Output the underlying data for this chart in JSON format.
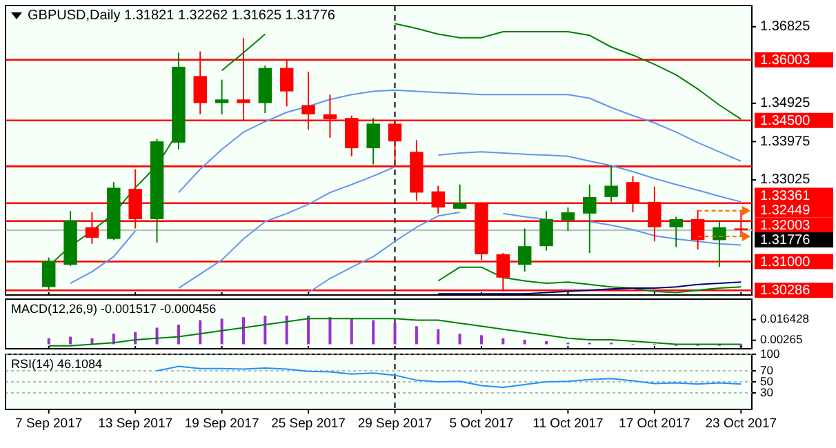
{
  "chart_data": [
    {
      "type": "candlestick",
      "title": "GBPUSD,Daily 1.31821 1.32262 1.31625 1.31776",
      "categories": [
        "7 Sep 2017",
        null,
        null,
        null,
        "13 Sep 2017",
        null,
        null,
        null,
        "19 Sep 2017",
        null,
        null,
        null,
        "25 Sep 2017",
        null,
        null,
        null,
        "29 Sep 2017",
        null,
        null,
        null,
        "5 Oct 2017",
        null,
        null,
        null,
        "11 Oct 2017",
        null,
        null,
        null,
        "17 Oct 2017",
        null,
        null,
        null,
        "23 Oct 2017"
      ],
      "ohlc": [
        [
          1.3037,
          1.311,
          1.303,
          1.3101
        ],
        [
          1.3092,
          1.3225,
          1.3089,
          1.3202
        ],
        [
          1.3185,
          1.3222,
          1.3144,
          1.3159
        ],
        [
          1.3156,
          1.3297,
          1.3153,
          1.3283
        ],
        [
          1.328,
          1.3329,
          1.3182,
          1.3205
        ],
        [
          1.3205,
          1.3404,
          1.3147,
          1.3398
        ],
        [
          1.3395,
          1.3618,
          1.3378,
          1.3583
        ],
        [
          1.356,
          1.3621,
          1.3465,
          1.3493
        ],
        [
          1.3493,
          1.3551,
          1.3465,
          1.3502
        ],
        [
          1.3502,
          1.3655,
          1.345,
          1.3493
        ],
        [
          1.3493,
          1.3586,
          1.3468,
          1.358
        ],
        [
          1.358,
          1.36,
          1.3485,
          1.3522
        ],
        [
          1.3488,
          1.3571,
          1.3427,
          1.3465
        ],
        [
          1.3465,
          1.3514,
          1.3407,
          1.3453
        ],
        [
          1.3456,
          1.3462,
          1.3361,
          1.3381
        ],
        [
          1.3381,
          1.3456,
          1.3341,
          1.3442
        ],
        [
          1.3442,
          1.3442,
          1.3346,
          1.3398
        ],
        [
          1.3372,
          1.3401,
          1.3251,
          1.3271
        ],
        [
          1.3274,
          1.3288,
          1.3219,
          1.3234
        ],
        [
          1.3231,
          1.3291,
          1.3231,
          1.3245
        ],
        [
          1.3245,
          1.3248,
          1.3104,
          1.3118
        ],
        [
          1.3118,
          1.3121,
          1.3026,
          1.306
        ],
        [
          1.3092,
          1.3182,
          1.3075,
          1.3138
        ],
        [
          1.3138,
          1.3225,
          1.3127,
          1.3205
        ],
        [
          1.3202,
          1.3234,
          1.3176,
          1.3222
        ],
        [
          1.3219,
          1.3291,
          1.3121,
          1.326
        ],
        [
          1.326,
          1.3338,
          1.3248,
          1.3288
        ],
        [
          1.3297,
          1.3312,
          1.3222,
          1.3245
        ],
        [
          1.3248,
          1.3286,
          1.315,
          1.3185
        ],
        [
          1.3185,
          1.3211,
          1.3136,
          1.3205
        ],
        [
          1.3205,
          1.3228,
          1.313,
          1.3153
        ],
        [
          1.3153,
          1.3202,
          1.3087,
          1.3185
        ],
        [
          1.31821,
          1.32262,
          1.31625,
          1.31776
        ]
      ],
      "colors": [
        "#008000",
        "#008000",
        "#ff0000",
        "#008000",
        "#ff0000",
        "#008000",
        "#008000",
        "#ff0000",
        "#008000",
        "#ff0000",
        "#008000",
        "#ff0000",
        "#ff0000",
        "#ff0000",
        "#ff0000",
        "#008000",
        "#ff0000",
        "#ff0000",
        "#ff0000",
        "#008000",
        "#ff0000",
        "#ff0000",
        "#008000",
        "#008000",
        "#008000",
        "#008000",
        "#008000",
        "#ff0000",
        "#ff0000",
        "#008000",
        "#ff0000",
        "#008000",
        "#ff0000"
      ],
      "series": [
        {
          "type": "line",
          "color": "#008000",
          "values": [
            1.3089,
            1.3138,
            1.3176,
            1.3219,
            1.3283,
            1.3338,
            1.3424,
            null,
            1.3574,
            1.3618,
            1.3664,
            null,
            null,
            null,
            null,
            null,
            1.369,
            1.3678,
            1.3664,
            1.3655,
            1.3655,
            1.367,
            1.367,
            1.367,
            1.367,
            1.3661,
            1.3632,
            1.3612,
            1.3589,
            1.3563,
            1.3528,
            1.3488,
            1.3453
          ]
        },
        {
          "type": "line",
          "color": "#008000",
          "values": [
            null,
            null,
            null,
            null,
            null,
            null,
            null,
            null,
            null,
            null,
            null,
            null,
            null,
            null,
            null,
            null,
            null,
            null,
            1.3052,
            1.3086,
            1.3086,
            1.306,
            1.3052,
            1.3046,
            1.3049,
            1.3043,
            1.3037,
            1.3034,
            1.3026,
            1.3023,
            1.3029,
            1.3034,
            1.3037
          ]
        },
        {
          "type": "line",
          "color": "#6495ed",
          "values": [
            null,
            1.3046,
            1.3075,
            1.3112,
            1.3176,
            null,
            1.3271,
            1.3329,
            1.3378,
            1.3421,
            1.3447,
            1.347,
            1.3485,
            1.3502,
            1.3514,
            1.3522,
            1.3525,
            1.3522,
            1.3519,
            1.3517,
            1.3514,
            1.3514,
            1.3514,
            1.3514,
            1.3514,
            1.3505,
            1.3482,
            1.3462,
            1.3444,
            1.3421,
            1.3395,
            1.3372,
            1.3349
          ]
        },
        {
          "type": "line",
          "color": "#6495ed",
          "values": [
            null,
            null,
            null,
            null,
            null,
            null,
            1.3034,
            1.3069,
            1.3104,
            1.3156,
            1.3199,
            1.3219,
            1.3242,
            1.3271,
            1.3291,
            1.3312,
            1.3335,
            null,
            1.3364,
            1.3369,
            1.3372,
            1.3369,
            1.3366,
            1.3364,
            1.3361,
            1.3349,
            1.3338,
            1.3323,
            1.3306,
            1.3291,
            1.3277,
            1.3262,
            1.3248
          ]
        },
        {
          "type": "line",
          "color": "#6495ed",
          "values": [
            null,
            null,
            null,
            null,
            null,
            null,
            null,
            null,
            null,
            null,
            null,
            null,
            1.3023,
            1.3058,
            1.3086,
            1.3112,
            1.315,
            1.3185,
            1.3213,
            1.3222,
            null,
            1.3219,
            1.3211,
            1.3205,
            null,
            1.3199,
            1.319,
            1.3179,
            1.3164,
            1.3156,
            1.315,
            1.3144,
            1.3141
          ]
        },
        {
          "type": "line",
          "color": "#000080",
          "values": [
            null,
            null,
            null,
            null,
            null,
            null,
            null,
            null,
            null,
            null,
            null,
            null,
            null,
            null,
            null,
            null,
            null,
            null,
            1.302,
            1.302,
            1.302,
            1.302,
            1.302,
            1.3023,
            1.3026,
            1.3029,
            1.3032,
            1.3034,
            1.3034,
            1.3037,
            1.3043,
            1.3046,
            1.3049
          ]
        }
      ],
      "ylim": [
        1.3017,
        1.3735
      ],
      "yticks": [
        1.36825,
        1.34925,
        1.33975,
        1.33025
      ],
      "tick_labels": "y",
      "ref_lines": [
        {
          "axis": "y",
          "value": 1.36003,
          "label": "1.36003",
          "color": "#ff0000"
        },
        {
          "axis": "y",
          "value": 1.345,
          "label": "1.34500",
          "color": "#ff0000"
        },
        {
          "axis": "y",
          "value": 1.33361,
          "label": "1.33361",
          "color": "#ff0000"
        },
        {
          "axis": "y",
          "value": 1.32449,
          "label": "1.32449",
          "color": "#ff0000"
        },
        {
          "axis": "y",
          "value": 1.32003,
          "label": "1.32003",
          "color": "#ff0000"
        },
        {
          "axis": "y",
          "value": 1.31776,
          "label": "1.31776",
          "color": "#c0c0c0"
        },
        {
          "axis": "y",
          "value": 1.31,
          "label": "1.31000",
          "color": "#ff0000"
        },
        {
          "axis": "y",
          "value": 1.30286,
          "label": "1.30286",
          "color": "#ff0000"
        },
        {
          "axis": "x",
          "value": "29 Sep 2017",
          "color": "#000000",
          "line_style": "dashed"
        }
      ]
    },
    {
      "type": "bar",
      "title": "MACD(12,26,9) -0.001517 -0.000456",
      "categories": [
        "7 Sep 2017",
        null,
        null,
        null,
        "13 Sep 2017",
        null,
        null,
        null,
        "19 Sep 2017",
        null,
        null,
        null,
        "25 Sep 2017",
        null,
        null,
        null,
        "29 Sep 2017",
        null,
        null,
        null,
        "5 Oct 2017",
        null,
        null,
        null,
        "11 Oct 2017",
        null,
        null,
        null,
        "17 Oct 2017",
        null,
        null,
        null,
        "23 Oct 2017"
      ],
      "series": [
        {
          "type": "bar",
          "color": "#9932cc",
          "values": [
            0.004,
            0.005,
            0.004,
            0.007,
            0.008,
            0.011,
            0.013,
            0.016,
            0.017,
            0.018,
            0.019,
            0.019,
            0.019,
            0.018,
            0.017,
            0.016,
            0.014,
            0.012,
            0.01,
            0.007,
            0.006,
            0.004,
            0.003,
            0.002,
            0.001,
            0.001,
            0.001,
            0,
            0,
            -0.001,
            -0.001,
            -0.001,
            -0.002
          ]
        },
        {
          "type": "line",
          "color": "#008000",
          "values": [
            -0.001,
            -0.001,
            0,
            0.001,
            0.003,
            0.004,
            0.005,
            0.007,
            0.009,
            0.011,
            0.013,
            0.015,
            0.017,
            0.017,
            0.017,
            0.017,
            0.017,
            0.016,
            0.016,
            0.014,
            0.012,
            0.01,
            0.008,
            0.006,
            0.004,
            0.003,
            0.003,
            0.002,
            0.001,
            0,
            0,
            0,
            0
          ]
        }
      ],
      "ylim": [
        -0.003,
        0.03
      ],
      "yticks": [
        0.016428,
        0.00265
      ],
      "tick_labels": "y",
      "ref_lines": [
        {
          "axis": "x",
          "value": "29 Sep 2017",
          "color": "#000000",
          "line_style": "dashed"
        }
      ]
    },
    {
      "type": "line",
      "title": "RSI(14) 46.1084",
      "categories": [
        "7 Sep 2017",
        null,
        null,
        null,
        "13 Sep 2017",
        null,
        null,
        null,
        "19 Sep 2017",
        null,
        null,
        null,
        "25 Sep 2017",
        null,
        null,
        null,
        "29 Sep 2017",
        null,
        null,
        null,
        "5 Oct 2017",
        null,
        null,
        null,
        "11 Oct 2017",
        null,
        null,
        null,
        "17 Oct 2017",
        null,
        null,
        null,
        "23 Oct 2017"
      ],
      "series": [
        {
          "color": "#1e90ff",
          "values": [
            null,
            null,
            null,
            null,
            null,
            70,
            78,
            74,
            74,
            73,
            75,
            73,
            69,
            68,
            64,
            66,
            62,
            53,
            50,
            51,
            43,
            40,
            45,
            50,
            51,
            54,
            56,
            52,
            47,
            48,
            46,
            48,
            46
          ]
        }
      ],
      "ylim": [
        0,
        100
      ],
      "yticks": [
        100,
        70,
        50,
        30
      ],
      "grid": "y",
      "ref_lines": [
        {
          "axis": "x",
          "value": "29 Sep 2017",
          "color": "#000000",
          "line_style": "dashed"
        }
      ]
    }
  ]
}
